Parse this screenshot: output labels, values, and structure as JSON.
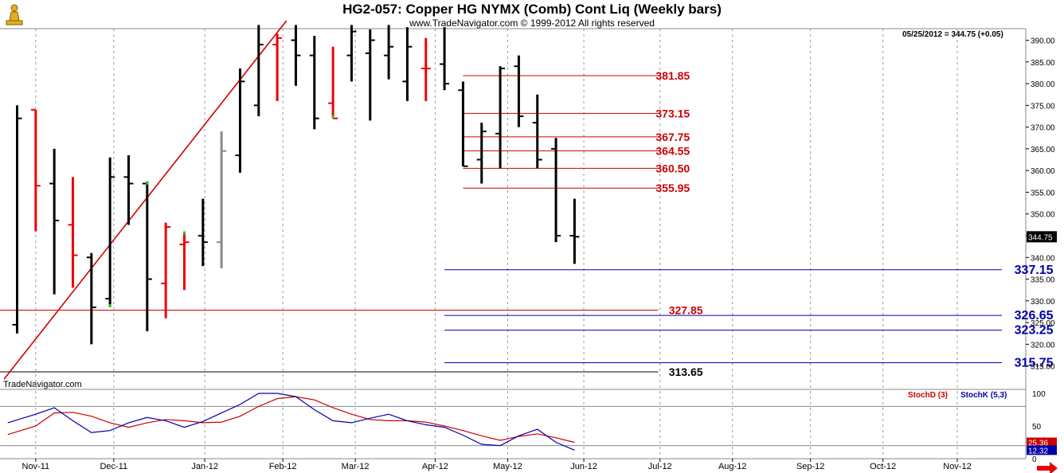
{
  "header": {
    "title": "HG2-057:  Copper HG NYMX (Comb) Cont Liq  (Weekly bars)",
    "copyright": "www.TradeNavigator.com © 1999-2012 All rights reserved",
    "readout": "05/25/2012 = 344.75 (+0.05)",
    "watermark": "TradeNavigator.com",
    "logo_icon": "pawn-logo-icon"
  },
  "colors": {
    "up_bar": "#000000",
    "down_bar": "#ee0000",
    "red_line": "#cc0000",
    "blue_line": "#0000aa",
    "black_line": "#000000",
    "green_tick": "#22cc22",
    "grid": "#999999"
  },
  "chart_data": [
    {
      "type": "ohlc",
      "title": "HG2-057:  Copper HG NYMX (Comb) Cont Liq  (Weekly bars)",
      "ylim": [
        310,
        395
      ],
      "y_ticks": [
        315,
        320,
        325,
        330,
        335,
        340,
        345,
        350,
        355,
        360,
        365,
        370,
        375,
        380,
        385,
        390
      ],
      "y_tick_labels": [
        "315.00",
        "320.00",
        "325.00",
        "330.00",
        "335.00",
        "340.00",
        "345.00",
        "350.00",
        "355.00",
        "360.00",
        "365.00",
        "370.00",
        "375.00",
        "380.00",
        "385.00",
        "390.00"
      ],
      "x_labels": [
        "Nov-11",
        "Dec-11",
        "Jan-12",
        "Feb-12",
        "Mar-12",
        "Apr-12",
        "May-12",
        "Jun-12",
        "Jul-12",
        "Aug-12",
        "Sep-12",
        "Oct-12",
        "Nov-12"
      ],
      "x_label_weeks": [
        1,
        5.2,
        10.1,
        14.3,
        18.2,
        22.5,
        26.4,
        30.5,
        34.6,
        38.5,
        42.7,
        46.6,
        50.6
      ],
      "grid": "vertical dashed",
      "last_price": "344.75",
      "bars": [
        {
          "w": 0,
          "o": 324.5,
          "h": 375,
          "l": 322.5,
          "c": 372,
          "color": "up"
        },
        {
          "w": 1,
          "o": 374,
          "h": 374,
          "l": 346,
          "c": 356.5,
          "color": "down"
        },
        {
          "w": 2,
          "o": 357,
          "h": 365,
          "l": 331.5,
          "c": 348.5,
          "color": "up"
        },
        {
          "w": 3,
          "o": 347.5,
          "h": 358.5,
          "l": 333,
          "c": 340.5,
          "color": "down"
        },
        {
          "w": 4,
          "o": 340,
          "h": 341,
          "l": 320,
          "c": 328.5,
          "color": "up"
        },
        {
          "w": 5,
          "o": 330.5,
          "h": 363,
          "l": 328.5,
          "c": 358.5,
          "color": "up",
          "green": "low"
        },
        {
          "w": 6,
          "o": 358.5,
          "h": 363.5,
          "l": 347.5,
          "c": 357,
          "color": "up"
        },
        {
          "w": 7,
          "o": 357,
          "h": 357.5,
          "l": 323,
          "c": 335,
          "color": "up",
          "green": "high"
        },
        {
          "w": 8,
          "o": 334,
          "h": 348,
          "l": 326,
          "c": 347,
          "color": "down"
        },
        {
          "w": 9,
          "o": 343,
          "h": 346,
          "l": 332.5,
          "c": 343.5,
          "color": "down",
          "green": "high"
        },
        {
          "w": 10,
          "o": 345,
          "h": 353.5,
          "l": 338,
          "c": 343.5,
          "color": "up"
        },
        {
          "w": 11,
          "o": 343.5,
          "h": 369,
          "l": 337.5,
          "c": 364.5,
          "color": "neutral"
        },
        {
          "w": 12,
          "o": 363.5,
          "h": 383.5,
          "l": 359.5,
          "c": 380.5,
          "color": "up"
        },
        {
          "w": 13,
          "o": 375,
          "h": 393.5,
          "l": 372.5,
          "c": 389,
          "color": "up"
        },
        {
          "w": 14,
          "o": 389,
          "h": 391.5,
          "l": 376,
          "c": 390.5,
          "color": "down"
        },
        {
          "w": 15,
          "o": 390,
          "h": 393.5,
          "l": 379.5,
          "c": 386.5,
          "color": "up"
        },
        {
          "w": 16,
          "o": 386.5,
          "h": 391,
          "l": 369.5,
          "c": 372,
          "color": "up"
        },
        {
          "w": 17,
          "o": 375.5,
          "h": 388.5,
          "l": 372,
          "c": 372,
          "color": "down",
          "green": "low"
        },
        {
          "w": 18,
          "o": 386.5,
          "h": 393.5,
          "l": 380.5,
          "c": 392,
          "color": "up"
        },
        {
          "w": 19,
          "o": 387,
          "h": 392.5,
          "l": 371.5,
          "c": 390,
          "color": "up"
        },
        {
          "w": 20,
          "o": 386.5,
          "h": 393.5,
          "l": 381,
          "c": 388.5,
          "color": "up"
        },
        {
          "w": 21,
          "o": 380.5,
          "h": 393,
          "l": 376,
          "c": 388.5,
          "color": "up"
        },
        {
          "w": 22,
          "o": 383.5,
          "h": 390.5,
          "l": 376,
          "c": 383.5,
          "color": "down"
        },
        {
          "w": 23,
          "o": 384.5,
          "h": 393,
          "l": 378.5,
          "c": 380,
          "color": "up"
        },
        {
          "w": 24,
          "o": 378.5,
          "h": 380.5,
          "l": 361,
          "c": 361,
          "color": "up"
        },
        {
          "w": 25,
          "o": 362.5,
          "h": 371,
          "l": 357,
          "c": 369,
          "color": "up"
        },
        {
          "w": 26,
          "o": 368.5,
          "h": 384,
          "l": 360.5,
          "c": 383.5,
          "color": "up"
        },
        {
          "w": 27,
          "o": 384,
          "h": 386.5,
          "l": 370,
          "c": 372.5,
          "color": "up"
        },
        {
          "w": 28,
          "o": 371,
          "h": 377.5,
          "l": 360.5,
          "c": 362.5,
          "color": "up"
        },
        {
          "w": 29,
          "o": 365,
          "h": 367.5,
          "l": 343.5,
          "c": 345,
          "color": "up"
        },
        {
          "w": 30,
          "o": 345,
          "h": 353.5,
          "l": 338.5,
          "c": 344.75,
          "color": "up"
        }
      ],
      "trendline": {
        "from": {
          "w": -0.7,
          "y": 312
        },
        "to": {
          "w": 14.5,
          "y": 394.5
        }
      },
      "levels": [
        {
          "label": "381.85",
          "value": 381.85,
          "color": "red",
          "from_w": 24,
          "to_w": 34.5,
          "label_w": 34.2,
          "text": "381.85"
        },
        {
          "label": "373.15",
          "value": 373.15,
          "color": "red",
          "from_w": 24,
          "to_w": 34.5,
          "label_w": 34.2,
          "text": "373.15"
        },
        {
          "label": "367.75",
          "value": 367.75,
          "color": "red",
          "from_w": 24,
          "to_w": 34.5,
          "label_w": 34.2,
          "text": "367.75"
        },
        {
          "label": "364.55",
          "value": 364.55,
          "color": "red",
          "from_w": 24,
          "to_w": 34.5,
          "label_w": 34.2,
          "text": "364.55"
        },
        {
          "label": "360.50",
          "value": 360.5,
          "color": "red",
          "from_w": 24,
          "to_w": 34.5,
          "label_w": 34.2,
          "text": "360.50"
        },
        {
          "label": "355.95",
          "value": 355.95,
          "color": "red",
          "from_w": 24,
          "to_w": 34.5,
          "label_w": 34.2,
          "text": "355.95"
        },
        {
          "label": "327.85",
          "value": 327.85,
          "color": "red",
          "from_w": -1,
          "to_w": 34.5,
          "label_w": 34.9,
          "text": "327.85"
        },
        {
          "label": "337.15",
          "value": 337.15,
          "color": "blue",
          "from_w": 23,
          "to_w": 53,
          "label_w": 53.5,
          "text": "337.15"
        },
        {
          "label": "326.65",
          "value": 326.65,
          "color": "blue",
          "from_w": 23,
          "to_w": 53,
          "label_w": 53.5,
          "text": "326.65"
        },
        {
          "label": "323.25",
          "value": 323.25,
          "color": "blue",
          "from_w": 23,
          "to_w": 53,
          "label_w": 53.5,
          "text": "323.25"
        },
        {
          "label": "315.75",
          "value": 315.75,
          "color": "blue",
          "from_w": 23,
          "to_w": 53,
          "label_w": 53.5,
          "text": "315.75"
        },
        {
          "label": "313.65",
          "value": 313.65,
          "color": "black",
          "from_w": -1,
          "to_w": 34.5,
          "label_w": 34.9,
          "text": "313.65"
        }
      ]
    },
    {
      "type": "line",
      "title": "",
      "ylim": [
        0,
        100
      ],
      "y_ticks": [
        0,
        50,
        100
      ],
      "y_tick_labels": [
        "0",
        "50",
        "100"
      ],
      "reference_lines": [
        20,
        80
      ],
      "series": [
        {
          "name": "StochD (3)",
          "color": "#cc0000",
          "label_text": "StochD (3)",
          "last_value": "25.36",
          "values": [
            [
              -0.5,
              37
            ],
            [
              1,
              50
            ],
            [
              2,
              70
            ],
            [
              3,
              71
            ],
            [
              4,
              65
            ],
            [
              5,
              55
            ],
            [
              6,
              48
            ],
            [
              7,
              55
            ],
            [
              8,
              60
            ],
            [
              9,
              58
            ],
            [
              10,
              55
            ],
            [
              11,
              56
            ],
            [
              12,
              65
            ],
            [
              13,
              80
            ],
            [
              14,
              92
            ],
            [
              15,
              95
            ],
            [
              16,
              90
            ],
            [
              17,
              78
            ],
            [
              18,
              68
            ],
            [
              19,
              60
            ],
            [
              20,
              58
            ],
            [
              21,
              58
            ],
            [
              22,
              56
            ],
            [
              23,
              50
            ],
            [
              24,
              43
            ],
            [
              25,
              35
            ],
            [
              26,
              28
            ],
            [
              27,
              34
            ],
            [
              28,
              38
            ],
            [
              29,
              32
            ],
            [
              30,
              25
            ]
          ]
        },
        {
          "name": "StochK (5,3)",
          "color": "#0000aa",
          "label_text": "StochK (5,3)",
          "last_value": "12.32",
          "values": [
            [
              -0.5,
              55
            ],
            [
              1,
              68
            ],
            [
              2,
              78
            ],
            [
              3,
              58
            ],
            [
              4,
              40
            ],
            [
              5,
              43
            ],
            [
              6,
              55
            ],
            [
              7,
              63
            ],
            [
              8,
              58
            ],
            [
              9,
              48
            ],
            [
              10,
              57
            ],
            [
              11,
              70
            ],
            [
              12,
              83
            ],
            [
              13,
              100
            ],
            [
              14,
              100
            ],
            [
              15,
              95
            ],
            [
              16,
              75
            ],
            [
              17,
              58
            ],
            [
              18,
              55
            ],
            [
              19,
              62
            ],
            [
              20,
              68
            ],
            [
              21,
              58
            ],
            [
              22,
              52
            ],
            [
              23,
              48
            ],
            [
              24,
              36
            ],
            [
              25,
              22
            ],
            [
              26,
              20
            ],
            [
              27,
              35
            ],
            [
              28,
              45
            ],
            [
              29,
              25
            ],
            [
              30,
              13
            ]
          ]
        }
      ]
    }
  ]
}
